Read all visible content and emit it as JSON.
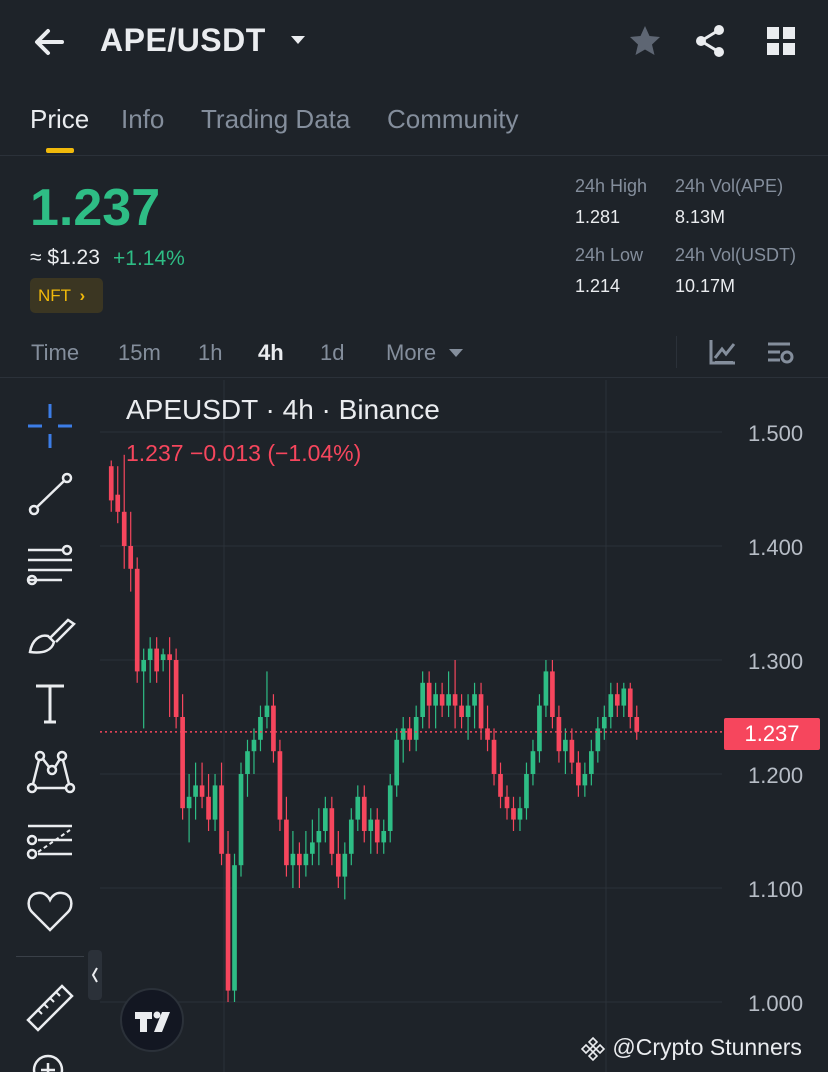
{
  "header": {
    "pair": "APE/USDT"
  },
  "tabs": [
    {
      "label": "Price"
    },
    {
      "label": "Info"
    },
    {
      "label": "Trading Data"
    },
    {
      "label": "Community"
    }
  ],
  "ticker": {
    "last_price": "1.237",
    "usd_price": "≈ $1.23",
    "change_pct": "+1.14%",
    "nft_label": "NFT",
    "nft_chevron": "›",
    "stats": {
      "high_label": "24h High",
      "high_value": "1.281",
      "low_label": "24h Low",
      "low_value": "1.214",
      "vol_base_label": "24h Vol(APE)",
      "vol_base_value": "8.13M",
      "vol_quote_label": "24h Vol(USDT)",
      "vol_quote_value": "10.17M"
    }
  },
  "intervals": {
    "items": [
      "Time",
      "15m",
      "1h",
      "4h",
      "1d"
    ],
    "more_label": "More",
    "active": "4h"
  },
  "chart": {
    "title": "APEUSDT · 4h · Binance",
    "ohlc_summary": "1.237  −0.013 (−1.04%)",
    "current_price_tag": "1.237",
    "watermark": "@Crypto Stunners",
    "colors": {
      "up": "#2ebd85",
      "down": "#f6465d",
      "grid": "#2b3139",
      "axis_text": "#b7bdc6"
    }
  },
  "tools": [
    "crosshair-icon",
    "trendline-icon",
    "fib-levels-icon",
    "brush-icon",
    "text-tool-icon",
    "pattern-icon",
    "forecast-icon",
    "favorite-heart-icon",
    "ruler-icon",
    "zoom-in-icon"
  ],
  "chart_data": {
    "type": "candlestick",
    "title": "APEUSDT · 4h · Binance",
    "ylim": [
      1.0,
      1.5
    ],
    "yticks": [
      1.5,
      1.4,
      1.3,
      1.2,
      1.1,
      1.0
    ],
    "ytick_labels": [
      "1.500",
      "1.400",
      "1.300",
      "1.200",
      "1.100",
      "1.000"
    ],
    "current_price": 1.237,
    "candles": [
      [
        1.47,
        1.475,
        1.43,
        1.44
      ],
      [
        1.445,
        1.47,
        1.42,
        1.43
      ],
      [
        1.43,
        1.48,
        1.38,
        1.4
      ],
      [
        1.4,
        1.43,
        1.36,
        1.38
      ],
      [
        1.38,
        1.39,
        1.28,
        1.29
      ],
      [
        1.29,
        1.31,
        1.24,
        1.3
      ],
      [
        1.3,
        1.32,
        1.28,
        1.31
      ],
      [
        1.31,
        1.32,
        1.28,
        1.29
      ],
      [
        1.3,
        1.31,
        1.29,
        1.305
      ],
      [
        1.305,
        1.32,
        1.25,
        1.3
      ],
      [
        1.3,
        1.31,
        1.24,
        1.25
      ],
      [
        1.25,
        1.27,
        1.16,
        1.17
      ],
      [
        1.17,
        1.2,
        1.14,
        1.18
      ],
      [
        1.18,
        1.21,
        1.16,
        1.19
      ],
      [
        1.19,
        1.21,
        1.17,
        1.18
      ],
      [
        1.18,
        1.2,
        1.15,
        1.16
      ],
      [
        1.16,
        1.2,
        1.15,
        1.19
      ],
      [
        1.19,
        1.21,
        1.12,
        1.13
      ],
      [
        1.13,
        1.15,
        1.0,
        1.01
      ],
      [
        1.01,
        1.13,
        1.0,
        1.12
      ],
      [
        1.12,
        1.21,
        1.11,
        1.2
      ],
      [
        1.2,
        1.23,
        1.18,
        1.22
      ],
      [
        1.22,
        1.24,
        1.2,
        1.23
      ],
      [
        1.23,
        1.26,
        1.22,
        1.25
      ],
      [
        1.25,
        1.29,
        1.24,
        1.26
      ],
      [
        1.26,
        1.27,
        1.21,
        1.22
      ],
      [
        1.22,
        1.23,
        1.15,
        1.16
      ],
      [
        1.16,
        1.18,
        1.11,
        1.12
      ],
      [
        1.12,
        1.15,
        1.1,
        1.13
      ],
      [
        1.13,
        1.14,
        1.1,
        1.12
      ],
      [
        1.12,
        1.15,
        1.11,
        1.13
      ],
      [
        1.13,
        1.16,
        1.12,
        1.14
      ],
      [
        1.14,
        1.17,
        1.12,
        1.15
      ],
      [
        1.15,
        1.18,
        1.14,
        1.17
      ],
      [
        1.17,
        1.18,
        1.12,
        1.13
      ],
      [
        1.13,
        1.15,
        1.1,
        1.11
      ],
      [
        1.11,
        1.14,
        1.09,
        1.13
      ],
      [
        1.13,
        1.17,
        1.12,
        1.16
      ],
      [
        1.16,
        1.19,
        1.15,
        1.18
      ],
      [
        1.18,
        1.19,
        1.14,
        1.15
      ],
      [
        1.15,
        1.17,
        1.13,
        1.16
      ],
      [
        1.16,
        1.17,
        1.13,
        1.14
      ],
      [
        1.14,
        1.16,
        1.13,
        1.15
      ],
      [
        1.15,
        1.2,
        1.14,
        1.19
      ],
      [
        1.19,
        1.24,
        1.18,
        1.23
      ],
      [
        1.23,
        1.25,
        1.21,
        1.24
      ],
      [
        1.24,
        1.25,
        1.22,
        1.23
      ],
      [
        1.23,
        1.26,
        1.22,
        1.25
      ],
      [
        1.25,
        1.29,
        1.24,
        1.28
      ],
      [
        1.28,
        1.29,
        1.24,
        1.26
      ],
      [
        1.26,
        1.28,
        1.24,
        1.27
      ],
      [
        1.27,
        1.28,
        1.25,
        1.26
      ],
      [
        1.26,
        1.29,
        1.25,
        1.27
      ],
      [
        1.27,
        1.3,
        1.24,
        1.26
      ],
      [
        1.26,
        1.27,
        1.24,
        1.25
      ],
      [
        1.25,
        1.27,
        1.23,
        1.26
      ],
      [
        1.26,
        1.28,
        1.24,
        1.27
      ],
      [
        1.27,
        1.28,
        1.23,
        1.24
      ],
      [
        1.24,
        1.26,
        1.22,
        1.23
      ],
      [
        1.23,
        1.24,
        1.19,
        1.2
      ],
      [
        1.2,
        1.21,
        1.17,
        1.18
      ],
      [
        1.18,
        1.19,
        1.16,
        1.17
      ],
      [
        1.17,
        1.18,
        1.15,
        1.16
      ],
      [
        1.16,
        1.18,
        1.15,
        1.17
      ],
      [
        1.17,
        1.21,
        1.16,
        1.2
      ],
      [
        1.2,
        1.23,
        1.19,
        1.22
      ],
      [
        1.22,
        1.27,
        1.21,
        1.26
      ],
      [
        1.26,
        1.3,
        1.25,
        1.29
      ],
      [
        1.29,
        1.3,
        1.24,
        1.25
      ],
      [
        1.25,
        1.26,
        1.21,
        1.22
      ],
      [
        1.22,
        1.24,
        1.2,
        1.23
      ],
      [
        1.23,
        1.24,
        1.2,
        1.21
      ],
      [
        1.21,
        1.22,
        1.18,
        1.19
      ],
      [
        1.19,
        1.21,
        1.18,
        1.2
      ],
      [
        1.2,
        1.23,
        1.19,
        1.22
      ],
      [
        1.22,
        1.25,
        1.21,
        1.24
      ],
      [
        1.24,
        1.26,
        1.23,
        1.25
      ],
      [
        1.25,
        1.28,
        1.24,
        1.27
      ],
      [
        1.27,
        1.28,
        1.25,
        1.26
      ],
      [
        1.26,
        1.28,
        1.25,
        1.275
      ],
      [
        1.275,
        1.28,
        1.24,
        1.25
      ],
      [
        1.25,
        1.26,
        1.23,
        1.237
      ]
    ]
  }
}
